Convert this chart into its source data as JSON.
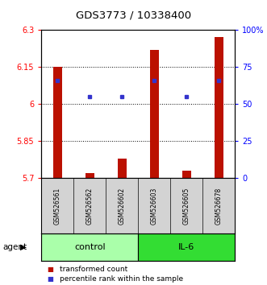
{
  "title": "GDS3773 / 10338400",
  "samples": [
    "GSM526561",
    "GSM526562",
    "GSM526602",
    "GSM526603",
    "GSM526605",
    "GSM526678"
  ],
  "red_bar_tops": [
    6.15,
    5.72,
    5.78,
    6.22,
    5.73,
    6.27
  ],
  "blue_dot_values": [
    6.095,
    6.03,
    6.03,
    6.095,
    6.03,
    6.095
  ],
  "bar_bottom": 5.7,
  "ylim_left": [
    5.7,
    6.3
  ],
  "ylim_right": [
    0,
    100
  ],
  "yticks_left": [
    5.7,
    5.85,
    6.0,
    6.15,
    6.3
  ],
  "yticks_right": [
    0,
    25,
    50,
    75,
    100
  ],
  "ytick_labels_left": [
    "5.7",
    "5.85",
    "6",
    "6.15",
    "6.3"
  ],
  "ytick_labels_right": [
    "0",
    "25",
    "50",
    "75",
    "100%"
  ],
  "hlines": [
    5.85,
    6.0,
    6.15
  ],
  "groups": [
    {
      "label": "control",
      "samples": [
        0,
        1,
        2
      ],
      "color": "#AAFFAA"
    },
    {
      "label": "IL-6",
      "samples": [
        3,
        4,
        5
      ],
      "color": "#33DD33"
    }
  ],
  "bar_color": "#BB1100",
  "dot_color": "#3333CC",
  "title_fontsize": 9.5,
  "tick_fontsize": 7,
  "sample_fontsize": 5.5,
  "legend_fontsize": 6.5,
  "group_fontsize": 8,
  "agent_fontsize": 7.5,
  "legend_label_red": "transformed count",
  "legend_label_blue": "percentile rank within the sample",
  "bg_color": "#FFFFFF"
}
